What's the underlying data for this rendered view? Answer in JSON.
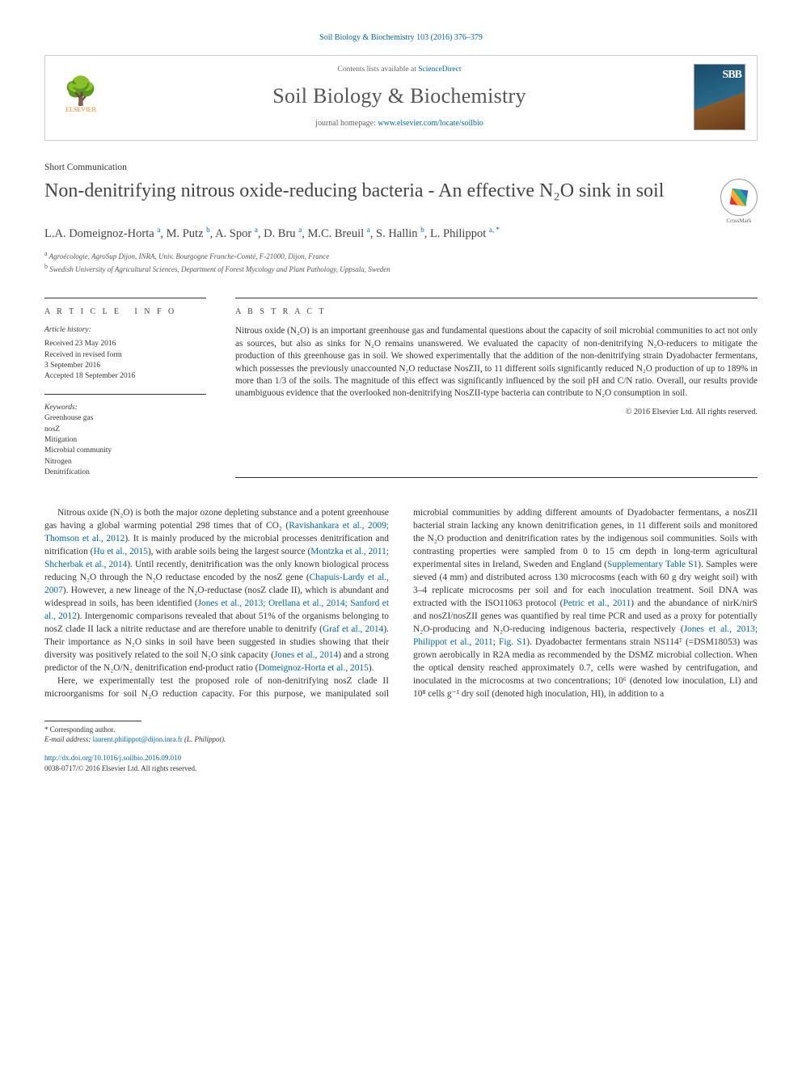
{
  "citation": "Soil Biology & Biochemistry 103 (2016) 376–379",
  "header": {
    "contents_prefix": "Contents lists available at ",
    "contents_link": "ScienceDirect",
    "journal": "Soil Biology & Biochemistry",
    "homepage_prefix": "journal homepage: ",
    "homepage_url": "www.elsevier.com/locate/soilbio",
    "publisher": "ELSEVIER",
    "cover_letters": "SBB"
  },
  "article_type": "Short Communication",
  "title": "Non-denitrifying nitrous oxide-reducing bacteria - An effective N₂O sink in soil",
  "crossmark_label": "CrossMark",
  "authors_html": "L.A. Domeignoz-Horta <sup>a</sup>, M. Putz <sup>b</sup>, A. Spor <sup>a</sup>, D. Bru <sup>a</sup>, M.C. Breuil <sup>a</sup>, S. Hallin <sup>b</sup>, L. Philippot <sup>a, *</sup>",
  "affiliations": [
    {
      "sup": "a",
      "text": "Agroécologie, AgroSup Dijon, INRA, Univ. Bourgogne Franche-Comté, F-21000, Dijon, France"
    },
    {
      "sup": "b",
      "text": "Swedish University of Agricultural Sciences, Department of Forest Mycology and Plant Pathology, Uppsala, Sweden"
    }
  ],
  "info": {
    "heading": "A R T I C L E   I N F O",
    "history_label": "Article history:",
    "history": [
      "Received 23 May 2016",
      "Received in revised form",
      "3 September 2016",
      "Accepted 18 September 2016"
    ],
    "kw_label": "Keywords:",
    "keywords": [
      "Greenhouse gas",
      "nosZ",
      "Mitigation",
      "Microbial community",
      "Nitrogen",
      "Denitrification"
    ]
  },
  "abstract": {
    "heading": "A B S T R A C T",
    "text": "Nitrous oxide (N₂O) is an important greenhouse gas and fundamental questions about the capacity of soil microbial communities to act not only as sources, but also as sinks for N₂O remains unanswered. We evaluated the capacity of non-denitrifying N₂O-reducers to mitigate the production of this greenhouse gas in soil. We showed experimentally that the addition of the non-denitrifying strain Dyadobacter fermentans, which possesses the previously unaccounted N₂O reductase NosZII, to 11 different soils significantly reduced N₂O production of up to 189% in more than 1/3 of the soils. The magnitude of this effect was significantly influenced by the soil pH and C/N ratio. Overall, our results provide unambiguous evidence that the overlooked non-denitrifying NosZII-type bacteria can contribute to N₂O consumption in soil.",
    "copyright": "© 2016 Elsevier Ltd. All rights reserved."
  },
  "body": {
    "para1_pre": "Nitrous oxide (N₂O) is both the major ozone depleting substance and a potent greenhouse gas having a global warming potential 298 times that of CO₂ (",
    "ref1": "Ravishankara et al., 2009; Thomson et al., 2012",
    "para1_a": "). It is mainly produced by the microbial processes denitrification and nitrification (",
    "ref2": "Hu et al., 2015",
    "para1_b": "), with arable soils being the largest source (",
    "ref3": "Montzka et al., 2011; Shcherbak et al., 2014",
    "para1_c": "). Until recently, denitrification was the only known biological process reducing N₂O through the N₂O reductase encoded by the nosZ gene (",
    "ref4": "Chapuis-Lardy et al., 2007",
    "para1_d": "). However, a new lineage of the N₂O-reductase (nosZ clade II), which is abundant and widespread in soils, has been identified (",
    "ref5": "Jones et al., 2013; Orellana et al., 2014; Sanford et al., 2012",
    "para1_e": "). Intergenomic comparisons revealed that about 51% of the organisms belonging to nosZ clade II lack a nitrite reductase and are therefore unable to denitrify (",
    "ref6": "Graf et al., 2014",
    "para1_f": "). Their importance as N₂O sinks in soil have been suggested in studies showing that their diversity was positively related to the soil N₂O sink capacity (",
    "ref7": "Jones et al., 2014",
    "para1_g": ") and a strong predictor of the N₂O/N₂ denitrification end-product ratio (",
    "ref8": "Domeignoz-Horta et al., 2015",
    "para1_h": ").",
    "para2_a": "Here, we experimentally test the proposed role of non-denitrifying nosZ clade II microorganisms for soil N₂O reduction capacity. For this purpose, we manipulated soil microbial communities by adding different amounts of Dyadobacter fermentans, a nosZII bacterial strain lacking any known denitrification genes, in 11 different soils and monitored the N₂O production and denitrification rates by the indigenous soil communities. Soils with contrasting properties were sampled from 0 to 15 cm depth in long-term agricultural experimental sites in Ireland, Sweden and England (",
    "ref9": "Supplementary Table S1",
    "para2_b": "). Samples were sieved (4 mm) and distributed across 130 microcosms (each with 60 g dry weight soil) with 3–4 replicate microcosms per soil and for each inoculation treatment. Soil DNA was extracted with the ISO11063 protocol (",
    "ref10": "Petric et al., 2011",
    "para2_c": ") and the abundance of nirK/nirS and nosZI/nosZII genes was quantified by real time PCR and used as a proxy for potentially N₂O-producing and N₂O-reducing indigenous bacteria, respectively (",
    "ref11": "Jones et al., 2013; Philippot et al., 2011",
    "para2_d": "; ",
    "ref12": "Fig. S1",
    "para2_e": "). Dyadobacter fermentans strain NS114ᵀ (=DSM18053) was grown aerobically in R2A media as recommended by the DSMZ microbial collection. When the optical density reached approximately 0.7, cells were washed by centrifugation, and inoculated in the microcosms at two concentrations; 10⁶ (denoted low inoculation, LI) and 10⁸ cells g⁻¹ dry soil (denoted high inoculation, HI), in addition to a"
  },
  "footer": {
    "corr": "* Corresponding author.",
    "email_label": "E-mail address: ",
    "email": "laurent.philippot@dijon.inra.fr",
    "email_name": " (L. Philippot).",
    "doi": "http://dx.doi.org/10.1016/j.soilbio.2016.09.010",
    "issn": "0038-0717/© 2016 Elsevier Ltd. All rights reserved."
  },
  "colors": {
    "link": "#0066aa",
    "text": "#333333",
    "elsevier_orange": "#f58220"
  }
}
